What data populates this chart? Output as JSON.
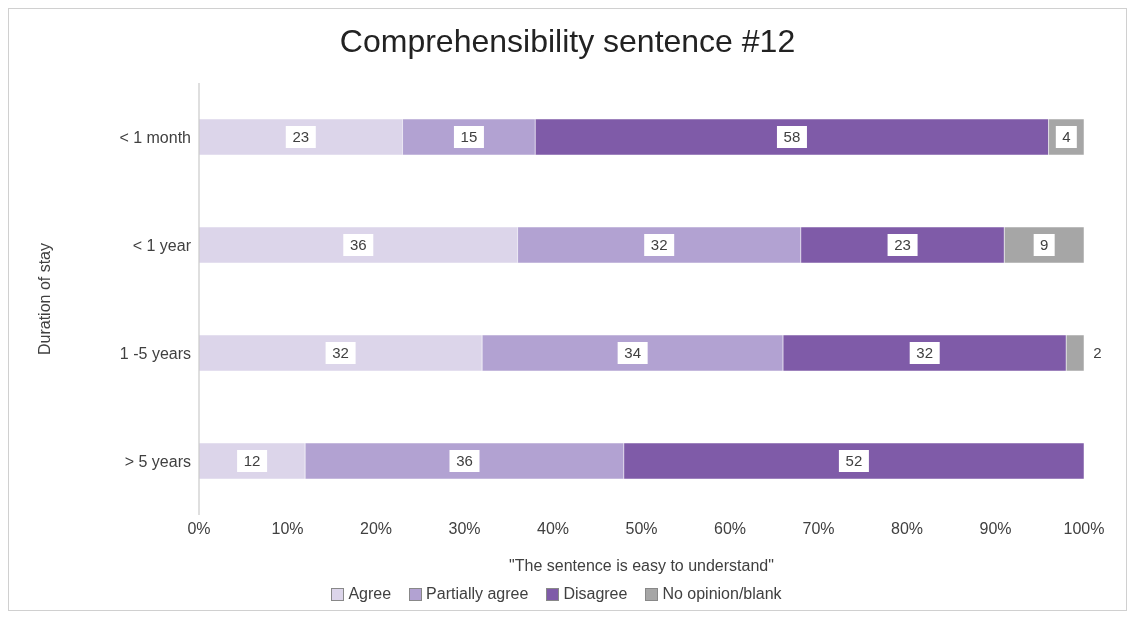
{
  "chart_data": {
    "type": "bar",
    "orientation": "horizontal",
    "stacked": true,
    "title": "Comprehensibility sentence #12",
    "xlabel": "\"The sentence is easy to understand\"",
    "ylabel": "Duration of stay",
    "categories": [
      "< 1 month",
      "< 1 year",
      "1 -5 years",
      "> 5 years"
    ],
    "series": [
      {
        "name": "Agree",
        "color": "#dcd5ea",
        "values": [
          23,
          36,
          32,
          12
        ]
      },
      {
        "name": "Partially agree",
        "color": "#b2a2d2",
        "values": [
          15,
          32,
          34,
          36
        ]
      },
      {
        "name": "Disagree",
        "color": "#7f5ba8",
        "values": [
          58,
          23,
          32,
          52
        ]
      },
      {
        "name": "No opinion/blank",
        "color": "#a6a6a6",
        "values": [
          4,
          9,
          2,
          null
        ]
      }
    ],
    "xlim": [
      0,
      100
    ],
    "xticks": [
      {
        "value": 0,
        "label": "0%"
      },
      {
        "value": 10,
        "label": "10%"
      },
      {
        "value": 20,
        "label": "20%"
      },
      {
        "value": 30,
        "label": "30%"
      },
      {
        "value": 40,
        "label": "40%"
      },
      {
        "value": 50,
        "label": "50%"
      },
      {
        "value": 60,
        "label": "60%"
      },
      {
        "value": 70,
        "label": "70%"
      },
      {
        "value": 80,
        "label": "80%"
      },
      {
        "value": 90,
        "label": "90%"
      },
      {
        "value": 100,
        "label": "100%"
      }
    ],
    "data_labels": true,
    "legend": "bottom",
    "grid": false
  }
}
